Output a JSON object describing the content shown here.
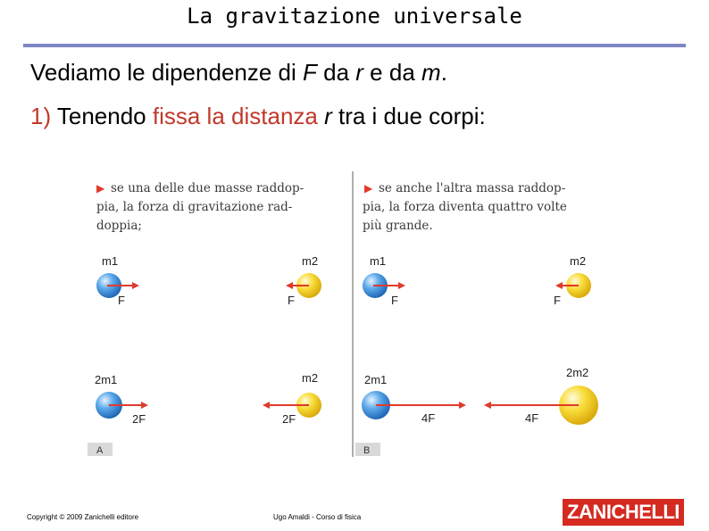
{
  "slide": {
    "title": "La gravitazione universale",
    "line1": {
      "a": "Vediamo le dipendenze di ",
      "F": "F",
      "b": " da ",
      "r": "r",
      "c": " e da ",
      "m": "m",
      "d": "."
    },
    "line2": {
      "num": "1)",
      "a": " Tenendo ",
      "accent": "fissa la distanza",
      "sp": " ",
      "r": "r",
      "b": " tra i due corpi:"
    }
  },
  "figure": {
    "panelA": {
      "caption": [
        "se una delle due masse raddop-",
        "pia, la forza di gravitazione rad-",
        "doppia;"
      ],
      "tag": "A",
      "row1": {
        "left_mass": "m1",
        "right_mass": "m2",
        "left_force": "F",
        "right_force": "F"
      },
      "row2": {
        "left_mass": "2m1",
        "right_mass": "m2",
        "left_force": "2F",
        "right_force": "2F"
      }
    },
    "panelB": {
      "caption": [
        "se anche l'altra massa raddop-",
        "pia, la forza diventa quattro volte",
        "più grande."
      ],
      "tag": "B",
      "row1": {
        "left_mass": "m1",
        "right_mass": "m2",
        "left_force": "F",
        "right_force": "F"
      },
      "row2": {
        "left_mass": "2m1",
        "right_mass": "2m2",
        "left_force": "4F",
        "right_force": "4F"
      }
    },
    "colors": {
      "blue_sphere": "#3f8fd8",
      "yellow_sphere": "#f5d21e",
      "arrow": "#e03a2c",
      "tag_bg": "#d9d9d9",
      "caption": "#3a3a3a"
    }
  },
  "footer": {
    "copyright": "Copyright © 2009 Zanichelli editore",
    "author": "Ugo Amaldi - Corso di fisica",
    "logo": "ZANICHELLI"
  }
}
